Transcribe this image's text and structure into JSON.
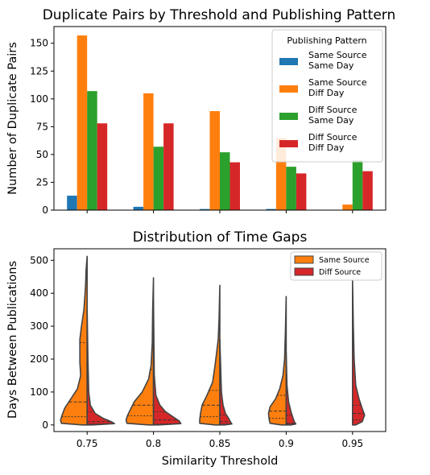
{
  "chart_data": [
    {
      "type": "bar",
      "title": "Duplicate Pairs by Threshold and Publishing Pattern",
      "xlabel": "",
      "ylabel": "Number of Duplicate Pairs",
      "categories": [
        "0.75",
        "0.8",
        "0.85",
        "0.9",
        "0.95"
      ],
      "ylim": [
        0,
        165
      ],
      "yticks": [
        "0",
        "25",
        "50",
        "75",
        "100",
        "125",
        "150"
      ],
      "grid": false,
      "legend": {
        "title": "Publishing Pattern",
        "placement": "top-right"
      },
      "series": [
        {
          "name": "Same Source\nSame Day",
          "color": "#1f77b4",
          "values": [
            13,
            3,
            1,
            1,
            0
          ]
        },
        {
          "name": "Same Source\nDiff Day",
          "color": "#ff7f0e",
          "values": [
            157,
            105,
            89,
            65,
            5
          ]
        },
        {
          "name": "Diff Source\nSame Day",
          "color": "#2ca02c",
          "values": [
            107,
            57,
            52,
            39,
            45
          ]
        },
        {
          "name": "Diff Source\nDiff Day",
          "color": "#d62728",
          "values": [
            78,
            78,
            43,
            33,
            35
          ]
        }
      ]
    },
    {
      "type": "violin",
      "title": "Distribution of Time Gaps",
      "xlabel": "Similarity Threshold",
      "ylabel": "Days Between Publications",
      "categories": [
        "0.75",
        "0.8",
        "0.85",
        "0.9",
        "0.95"
      ],
      "ylim": [
        -20,
        535
      ],
      "yticks": [
        "0",
        "100",
        "200",
        "300",
        "400",
        "500"
      ],
      "split": true,
      "grid": false,
      "legend": {
        "placement": "top-right"
      },
      "series": [
        {
          "name": "Same Source",
          "color": "#ff7f0e",
          "groups": [
            {
              "max": 512,
              "quartiles": [
                25,
                70,
                250
              ]
            },
            {
              "max": 447,
              "quartiles": [
                28,
                60,
                168
              ]
            },
            {
              "max": 424,
              "quartiles": [
                25,
                60,
                105
              ]
            },
            {
              "max": 390,
              "quartiles": [
                20,
                42,
                90
              ]
            },
            {
              "max": 0,
              "quartiles": []
            }
          ]
        },
        {
          "name": "Diff Source",
          "color": "#d62728",
          "groups": [
            {
              "max": 355,
              "quartiles": [
                3,
                10,
                40
              ]
            },
            {
              "max": 377,
              "quartiles": [
                3,
                15,
                40
              ]
            },
            {
              "max": 260,
              "quartiles": [
                3,
                10,
                30
              ]
            },
            {
              "max": 220,
              "quartiles": [
                3,
                5,
                30
              ]
            },
            {
              "max": 440,
              "quartiles": [
                15,
                35,
                60
              ]
            }
          ]
        }
      ]
    }
  ]
}
